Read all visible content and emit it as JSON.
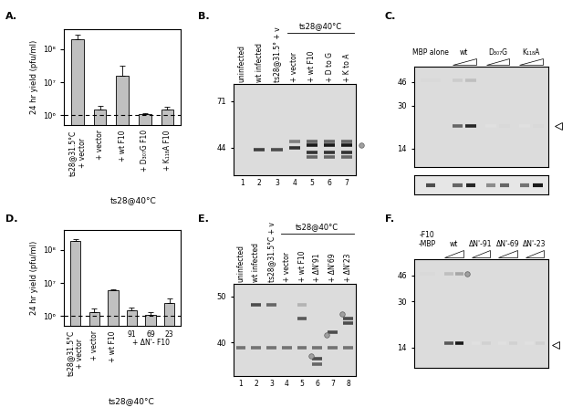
{
  "chart_data": [
    {
      "type": "bar",
      "title": "A.",
      "y_label": "24 hr yield (pfu/ml)",
      "categories": [
        "ts28@31.5°C\n+ vector",
        "+ vector",
        "+ wt F10",
        "+ D₃₀₇G F10",
        "+ K₁₁₈A F10"
      ],
      "group_label": "ts28@40°C",
      "values": [
        200000000,
        1500000,
        16000000,
        1100000,
        1500000
      ],
      "error": [
        70000000,
        400000,
        16000000,
        100000,
        300000
      ],
      "reference_line": 1000000,
      "color": "#c0c0c0",
      "log": "y",
      "grid": false,
      "ylim": [
        500000,
        400000000
      ],
      "yticks": [
        {
          "value": 1000000,
          "label": "10⁶"
        },
        {
          "value": 10000000,
          "label": "10⁷"
        },
        {
          "value": 100000000,
          "label": "10⁸"
        }
      ]
    },
    {
      "type": "bar",
      "title": "D.",
      "y_label": "24 hr yield (pfu/ml)",
      "categories": [
        "ts28@31.5°C\n+ vector",
        "+ vector",
        "+ wt F10",
        "91",
        "69",
        "23"
      ],
      "group_label": "ts28@40°C",
      "subgroup_label": "+ ΔN'- F10",
      "values": [
        180000000,
        1300000,
        6000000,
        1500000,
        1100000,
        2500000
      ],
      "error": [
        30000000,
        400000,
        600000,
        300000,
        200000,
        900000
      ],
      "reference_line": 1000000,
      "color": "#c0c0c0",
      "log": "y",
      "grid": false,
      "ylim": [
        500000,
        400000000
      ],
      "yticks": [
        {
          "value": 1000000,
          "label": "10⁶"
        },
        {
          "value": 10000000,
          "label": "10⁷"
        },
        {
          "value": 100000000,
          "label": "10⁸"
        }
      ]
    }
  ],
  "gels": [
    {
      "title": "B.",
      "lanes": [
        "uninfected",
        "wt infected",
        "ts28@31.5° + v",
        "+ vector",
        "+ wt F10",
        "+ D to G",
        "+ K to A"
      ],
      "group_label": "ts28@40°C",
      "lane_numbers": [
        1,
        2,
        3,
        4,
        5,
        6,
        7
      ],
      "markers": [
        71,
        44
      ],
      "kda_range": [
        33,
        85
      ]
    },
    {
      "title": "C.",
      "lanes": [
        "MBP alone",
        "wt",
        "D₃₀₇G",
        "K₁₁₈A"
      ],
      "markers": [
        46,
        30,
        14
      ],
      "kda_range": [
        10,
        60
      ]
    },
    {
      "title": "E.",
      "lanes": [
        "uninfected",
        "wt infected",
        "ts28@31.5°C + v",
        "+ vector",
        "+ wt F10",
        "+ ΔN'91",
        "+ ΔN'69",
        "+ ΔN'23"
      ],
      "group_label": "ts28@40°C",
      "lane_numbers": [
        1,
        2,
        3,
        4,
        5,
        6,
        7,
        8
      ],
      "markers": [
        50,
        40
      ],
      "kda_range": [
        34,
        53
      ]
    },
    {
      "title": "F.",
      "lanes": [
        "-F10\n-MBP",
        "wt",
        "ΔN'-91",
        "ΔN'-69",
        "ΔN'-23"
      ],
      "markers": [
        46,
        30,
        14
      ],
      "kda_range": [
        10,
        60
      ]
    }
  ]
}
